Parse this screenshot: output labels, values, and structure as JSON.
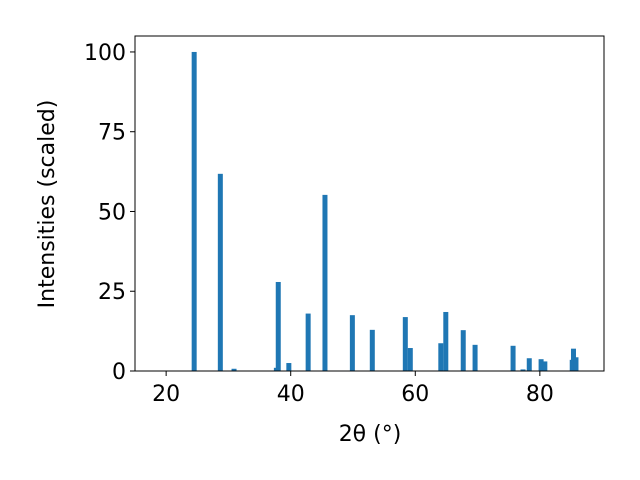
{
  "chart_data": {
    "type": "bar",
    "x_label": "2θ (°)",
    "y_label": "Intensities (scaled)",
    "x": [
      24.5,
      28.7,
      30.9,
      37.7,
      38.0,
      39.7,
      42.8,
      45.5,
      49.9,
      53.1,
      58.4,
      59.2,
      64.1,
      64.9,
      67.7,
      69.6,
      75.7,
      77.3,
      78.3,
      80.2,
      80.8,
      85.2,
      85.4,
      85.8
    ],
    "values": [
      100,
      61.8,
      0.7,
      1,
      27.9,
      2.5,
      18,
      55.2,
      17.5,
      12.9,
      16.9,
      7.2,
      8.7,
      18.5,
      12.8,
      8.2,
      7.9,
      0.5,
      4,
      3.7,
      3,
      3.5,
      7,
      4.3
    ],
    "color": "#1f77b4",
    "xlim": [
      15,
      90.3
    ],
    "xticks": [
      20,
      40,
      60,
      80
    ],
    "ylim": [
      0,
      105
    ],
    "yticks": [
      0,
      25,
      50,
      75,
      100
    ]
  }
}
